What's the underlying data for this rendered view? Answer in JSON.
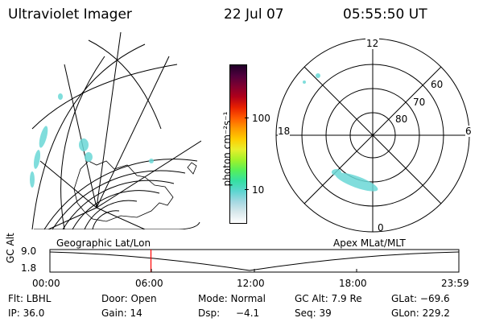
{
  "header": {
    "title": "Ultraviolet Imager",
    "date": "22 Jul 07",
    "time": "05:55:50 UT"
  },
  "colorbar": {
    "label": "photon cm⁻²s⁻¹",
    "ticks": [
      "100",
      "10"
    ],
    "colors": [
      "#ffffff",
      "#d9e9ec",
      "#a6d8e2",
      "#5ed5d1",
      "#35e0a2",
      "#55f05a",
      "#a2f22a",
      "#e8ef2c",
      "#ffcc00",
      "#ff9900",
      "#ff5a00",
      "#e82000",
      "#b0001a",
      "#800030",
      "#50003c",
      "#200028"
    ]
  },
  "geo_map": {
    "lon_labels": [],
    "aurora_color": "#6ad8d6"
  },
  "polar_map": {
    "mlt_labels": {
      "top": "12",
      "bottom": "0",
      "left": "18",
      "right": "6"
    },
    "lat_labels": [
      "60",
      "70",
      "80"
    ],
    "aurora_color": "#6ad8d6"
  },
  "timeline": {
    "left_label": "Geographic Lat/Lon",
    "right_label": "Apex  MLat/MLT",
    "y_axis_title": "GC Alt",
    "y_ticks": [
      "9.0",
      "1.8"
    ],
    "x_ticks": [
      "00:00",
      "06:00",
      "12:00",
      "18:00",
      "23:59"
    ],
    "marker_color": "#ff0000",
    "marker_time_hours": 5.93
  },
  "info": {
    "row1": {
      "flt": "Flt: LBHL",
      "door": "Door: Open",
      "mode": "Mode: Normal",
      "gcalt": "GC Alt: 7.9 Re",
      "glat": "GLat: −69.6"
    },
    "row2": {
      "ip": "IP: 36.0",
      "gain": "Gain: 14",
      "dsp_label": "Dsp:",
      "dsp_value": "−4.1",
      "seq": "Seq: 39",
      "glon": "GLon: 229.2"
    }
  }
}
